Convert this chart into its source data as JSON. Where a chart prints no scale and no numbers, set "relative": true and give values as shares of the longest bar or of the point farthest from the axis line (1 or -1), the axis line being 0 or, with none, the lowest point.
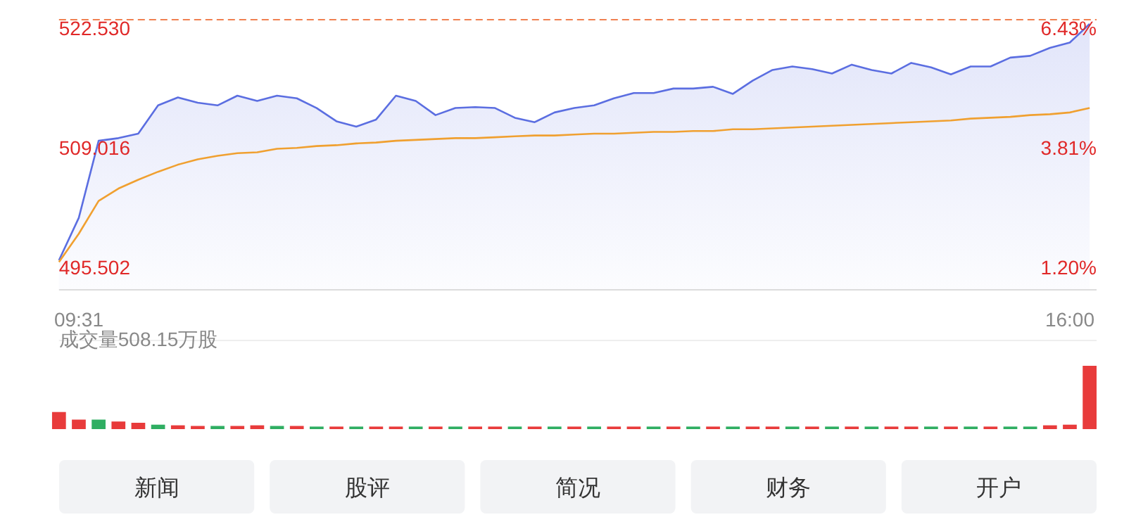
{
  "chart_data": [
    {
      "type": "line",
      "categories": [
        null,
        "09:31",
        null,
        null,
        null,
        null,
        null,
        null,
        null,
        null,
        null,
        null,
        null,
        null,
        null,
        null,
        null,
        null,
        null,
        null,
        null,
        null,
        null,
        null,
        null,
        null,
        null,
        null,
        null,
        null,
        null,
        null,
        null,
        null,
        null,
        null,
        null,
        null,
        null,
        null,
        null,
        null,
        null,
        null,
        null,
        null,
        null,
        null,
        null,
        null,
        null,
        "16:00",
        null
      ],
      "series": [
        {
          "color": "#5b6ee1",
          "values": [
            496.3,
            501.1,
            509.8,
            510.1,
            510.6,
            513.8,
            514.7,
            514.1,
            513.8,
            514.9,
            514.3,
            514.9,
            514.6,
            513.5,
            512.0,
            511.4,
            512.2,
            514.9,
            514.3,
            512.7,
            513.5,
            513.6,
            513.5,
            512.4,
            511.9,
            513.0,
            513.5,
            513.8,
            514.6,
            515.2,
            515.2,
            515.7,
            515.7,
            515.9,
            515.1,
            516.6,
            517.8,
            518.2,
            517.9,
            517.4,
            518.4,
            517.8,
            517.4,
            518.6,
            518.1,
            517.3,
            518.2,
            518.2,
            519.2,
            519.4,
            520.3,
            520.9,
            523.0
          ]
        },
        {
          "color": "#f0a030",
          "values": [
            496.1,
            499.3,
            503.0,
            504.4,
            505.4,
            506.3,
            507.1,
            507.7,
            508.1,
            508.4,
            508.5,
            508.9,
            509.0,
            509.2,
            509.3,
            509.5,
            509.6,
            509.8,
            509.9,
            510.0,
            510.1,
            510.1,
            510.2,
            510.3,
            510.4,
            510.4,
            510.5,
            510.6,
            510.6,
            510.7,
            510.8,
            510.8,
            510.9,
            510.9,
            511.1,
            511.1,
            511.2,
            511.3,
            511.4,
            511.5,
            511.6,
            511.7,
            511.8,
            511.9,
            512.0,
            512.1,
            512.3,
            512.4,
            512.5,
            512.7,
            512.8,
            513.0,
            513.5
          ]
        }
      ],
      "ylim": [
        492.96,
        523.48
      ],
      "yticks": [
        495.502,
        509.016,
        {
          "value": 522.53,
          "label": "522.530"
        }
      ],
      "y2lim": [
        0.71,
        6.61
      ],
      "y2ticks": [
        {
          "value": 1.2,
          "label": "1.20%"
        },
        {
          "value": 3.81,
          "label": "3.81%"
        },
        {
          "value": 6.43,
          "label": "6.43%"
        }
      ],
      "ref_lines": [
        {
          "axis": "y",
          "value": 523.48,
          "color": "#f08050",
          "line_style": "dashed"
        }
      ],
      "grid": false,
      "marker": "none"
    },
    {
      "type": "bar",
      "title": "成交量508.15万股",
      "relative": true,
      "categories": [
        null,
        null,
        null,
        null,
        null,
        null,
        null,
        null,
        null,
        null,
        null,
        null,
        null,
        null,
        null,
        null,
        null,
        null,
        null,
        null,
        null,
        null,
        null,
        null,
        null,
        null,
        null,
        null,
        null,
        null,
        null,
        null,
        null,
        null,
        null,
        null,
        null,
        null,
        null,
        null,
        null,
        null,
        null,
        null,
        null,
        null,
        null,
        null,
        null,
        null,
        null,
        null,
        null
      ],
      "values": [
        0.27,
        0.15,
        0.15,
        0.12,
        0.1,
        0.07,
        0.06,
        0.05,
        0.05,
        0.05,
        0.06,
        0.05,
        0.05,
        0.04,
        0.04,
        0.04,
        0.04,
        0.04,
        0.04,
        0.04,
        0.04,
        0.04,
        0.04,
        0.04,
        0.04,
        0.04,
        0.04,
        0.04,
        0.04,
        0.04,
        0.04,
        0.04,
        0.04,
        0.04,
        0.04,
        0.04,
        0.04,
        0.04,
        0.04,
        0.04,
        0.04,
        0.04,
        0.04,
        0.04,
        0.04,
        0.04,
        0.04,
        0.04,
        0.04,
        0.04,
        0.06,
        0.07,
        1
      ],
      "colors": [
        "#e83b3b",
        "#e83b3b",
        "#2fae62",
        "#e83b3b",
        "#e83b3b",
        "#2fae62",
        "#e83b3b",
        "#e83b3b",
        "#2fae62",
        "#e83b3b",
        "#e83b3b",
        "#2fae62",
        "#e83b3b",
        "#2fae62",
        "#e83b3b",
        "#2fae62",
        "#e83b3b",
        "#e83b3b",
        "#2fae62",
        "#e83b3b",
        "#2fae62",
        "#e83b3b",
        "#e83b3b",
        "#2fae62",
        "#e83b3b",
        "#2fae62",
        "#e83b3b",
        "#2fae62",
        "#e83b3b",
        "#e83b3b",
        "#2fae62",
        "#e83b3b",
        "#2fae62",
        "#e83b3b",
        "#2fae62",
        "#e83b3b",
        "#e83b3b",
        "#2fae62",
        "#e83b3b",
        "#2fae62",
        "#e83b3b",
        "#2fae62",
        "#e83b3b",
        "#e83b3b",
        "#2fae62",
        "#e83b3b",
        "#2fae62",
        "#e83b3b",
        "#2fae62",
        "#2fae62",
        "#e83b3b",
        "#e83b3b",
        "#e83b3b"
      ]
    },
    {
      "type": "other",
      "annotations": [
        "新闻",
        "股评",
        "简况",
        "财务",
        "开户"
      ]
    }
  ]
}
